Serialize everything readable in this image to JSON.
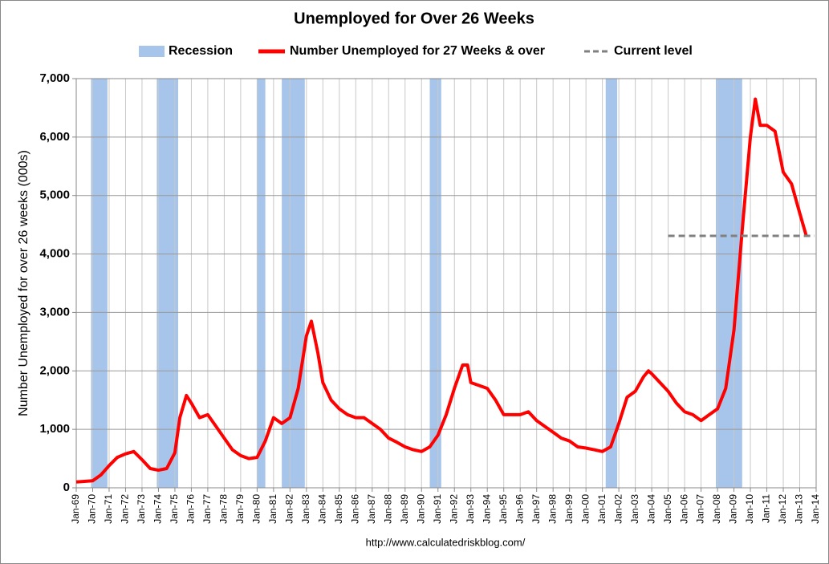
{
  "chart_data": {
    "type": "line",
    "title": "Unemployed for Over 26 Weeks",
    "ylabel": "Number Unemployed for over 26 weeks (000s)",
    "source": "http://www.calculatedriskblog.com/",
    "grid": true,
    "legend": "top",
    "xlim": [
      1969,
      2014
    ],
    "xticks": [
      {
        "value": 1969,
        "label": "Jan-69"
      },
      {
        "value": 1970,
        "label": "Jan-70"
      },
      {
        "value": 1971,
        "label": "Jan-71"
      },
      {
        "value": 1972,
        "label": "Jan-72"
      },
      {
        "value": 1973,
        "label": "Jan-73"
      },
      {
        "value": 1974,
        "label": "Jan-74"
      },
      {
        "value": 1975,
        "label": "Jan-75"
      },
      {
        "value": 1976,
        "label": "Jan-76"
      },
      {
        "value": 1977,
        "label": "Jan-77"
      },
      {
        "value": 1978,
        "label": "Jan-78"
      },
      {
        "value": 1979,
        "label": "Jan-79"
      },
      {
        "value": 1980,
        "label": "Jan-80"
      },
      {
        "value": 1981,
        "label": "Jan-81"
      },
      {
        "value": 1982,
        "label": "Jan-82"
      },
      {
        "value": 1983,
        "label": "Jan-83"
      },
      {
        "value": 1984,
        "label": "Jan-84"
      },
      {
        "value": 1985,
        "label": "Jan-85"
      },
      {
        "value": 1986,
        "label": "Jan-86"
      },
      {
        "value": 1987,
        "label": "Jan-87"
      },
      {
        "value": 1988,
        "label": "Jan-88"
      },
      {
        "value": 1989,
        "label": "Jan-89"
      },
      {
        "value": 1990,
        "label": "Jan-90"
      },
      {
        "value": 1991,
        "label": "Jan-91"
      },
      {
        "value": 1992,
        "label": "Jan-92"
      },
      {
        "value": 1993,
        "label": "Jan-93"
      },
      {
        "value": 1994,
        "label": "Jan-94"
      },
      {
        "value": 1995,
        "label": "Jan-95"
      },
      {
        "value": 1996,
        "label": "Jan-96"
      },
      {
        "value": 1997,
        "label": "Jan-97"
      },
      {
        "value": 1998,
        "label": "Jan-98"
      },
      {
        "value": 1999,
        "label": "Jan-99"
      },
      {
        "value": 2000,
        "label": "Jan-00"
      },
      {
        "value": 2001,
        "label": "Jan-01"
      },
      {
        "value": 2002,
        "label": "Jan-02"
      },
      {
        "value": 2003,
        "label": "Jan-03"
      },
      {
        "value": 2004,
        "label": "Jan-04"
      },
      {
        "value": 2005,
        "label": "Jan-05"
      },
      {
        "value": 2006,
        "label": "Jan-06"
      },
      {
        "value": 2007,
        "label": "Jan-07"
      },
      {
        "value": 2008,
        "label": "Jan-08"
      },
      {
        "value": 2009,
        "label": "Jan-09"
      },
      {
        "value": 2010,
        "label": "Jan-10"
      },
      {
        "value": 2011,
        "label": "Jan-11"
      },
      {
        "value": 2012,
        "label": "Jan-12"
      },
      {
        "value": 2013,
        "label": "Jan-13"
      },
      {
        "value": 2014,
        "label": "Jan-14"
      }
    ],
    "ylim": [
      0,
      7000
    ],
    "yticks": [
      0,
      {
        "value": 1000,
        "label": "1,000"
      },
      {
        "value": 2000,
        "label": "2,000"
      },
      {
        "value": 3000,
        "label": "3,000"
      },
      {
        "value": 4000,
        "label": "4,000"
      },
      {
        "value": 5000,
        "label": "5,000"
      },
      {
        "value": 6000,
        "label": "6,000"
      },
      {
        "value": 7000,
        "label": "7,000"
      }
    ],
    "recessions": {
      "name": "Recession",
      "color": "#a7c5ea",
      "ranges": [
        [
          1969.9,
          1970.9
        ],
        [
          1973.9,
          1975.2
        ],
        [
          1980.0,
          1980.5
        ],
        [
          1981.5,
          1982.9
        ],
        [
          1990.5,
          1991.2
        ],
        [
          2001.2,
          2001.9
        ],
        [
          2007.9,
          2009.5
        ]
      ]
    },
    "series": [
      {
        "name": "Number Unemployed for 27 Weeks & over",
        "color": "#ff0000",
        "x": [
          1969.0,
          1969.5,
          1970.0,
          1970.5,
          1971.0,
          1971.5,
          1972.0,
          1972.5,
          1973.0,
          1973.5,
          1974.0,
          1974.5,
          1975.0,
          1975.3,
          1975.7,
          1976.0,
          1976.5,
          1977.0,
          1977.5,
          1978.0,
          1978.5,
          1979.0,
          1979.5,
          1980.0,
          1980.5,
          1981.0,
          1981.5,
          1982.0,
          1982.5,
          1983.0,
          1983.3,
          1983.7,
          1984.0,
          1984.5,
          1985.0,
          1985.5,
          1986.0,
          1986.5,
          1987.0,
          1987.5,
          1988.0,
          1988.5,
          1989.0,
          1989.5,
          1990.0,
          1990.5,
          1991.0,
          1991.5,
          1992.0,
          1992.5,
          1992.8,
          1993.0,
          1993.5,
          1994.0,
          1994.5,
          1995.0,
          1995.5,
          1996.0,
          1996.5,
          1997.0,
          1997.5,
          1998.0,
          1998.5,
          1999.0,
          1999.5,
          2000.0,
          2000.5,
          2001.0,
          2001.5,
          2002.0,
          2002.5,
          2003.0,
          2003.5,
          2003.8,
          2004.0,
          2004.5,
          2005.0,
          2005.5,
          2006.0,
          2006.5,
          2007.0,
          2007.5,
          2008.0,
          2008.5,
          2009.0,
          2009.5,
          2010.0,
          2010.3,
          2010.6,
          2011.0,
          2011.5,
          2012.0,
          2012.5,
          2013.0,
          2013.4
        ],
        "values": [
          100,
          110,
          120,
          220,
          380,
          520,
          580,
          620,
          480,
          330,
          300,
          330,
          600,
          1200,
          1580,
          1450,
          1200,
          1250,
          1050,
          850,
          650,
          550,
          500,
          520,
          800,
          1200,
          1100,
          1200,
          1700,
          2600,
          2850,
          2300,
          1800,
          1500,
          1350,
          1250,
          1200,
          1200,
          1100,
          1000,
          850,
          780,
          700,
          650,
          620,
          700,
          900,
          1250,
          1700,
          2100,
          2100,
          1800,
          1750,
          1700,
          1500,
          1250,
          1250,
          1250,
          1300,
          1150,
          1050,
          950,
          850,
          800,
          700,
          680,
          650,
          620,
          700,
          1100,
          1550,
          1650,
          1900,
          2000,
          1950,
          1800,
          1650,
          1450,
          1300,
          1250,
          1150,
          1250,
          1350,
          1700,
          2700,
          4400,
          6000,
          6650,
          6200,
          6200,
          6100,
          5400,
          5200,
          4700,
          4310
        ]
      }
    ],
    "current_level": {
      "name": "Current level",
      "color": "#808080",
      "x": [
        2005.0,
        2013.9
      ],
      "value": 4310
    }
  }
}
